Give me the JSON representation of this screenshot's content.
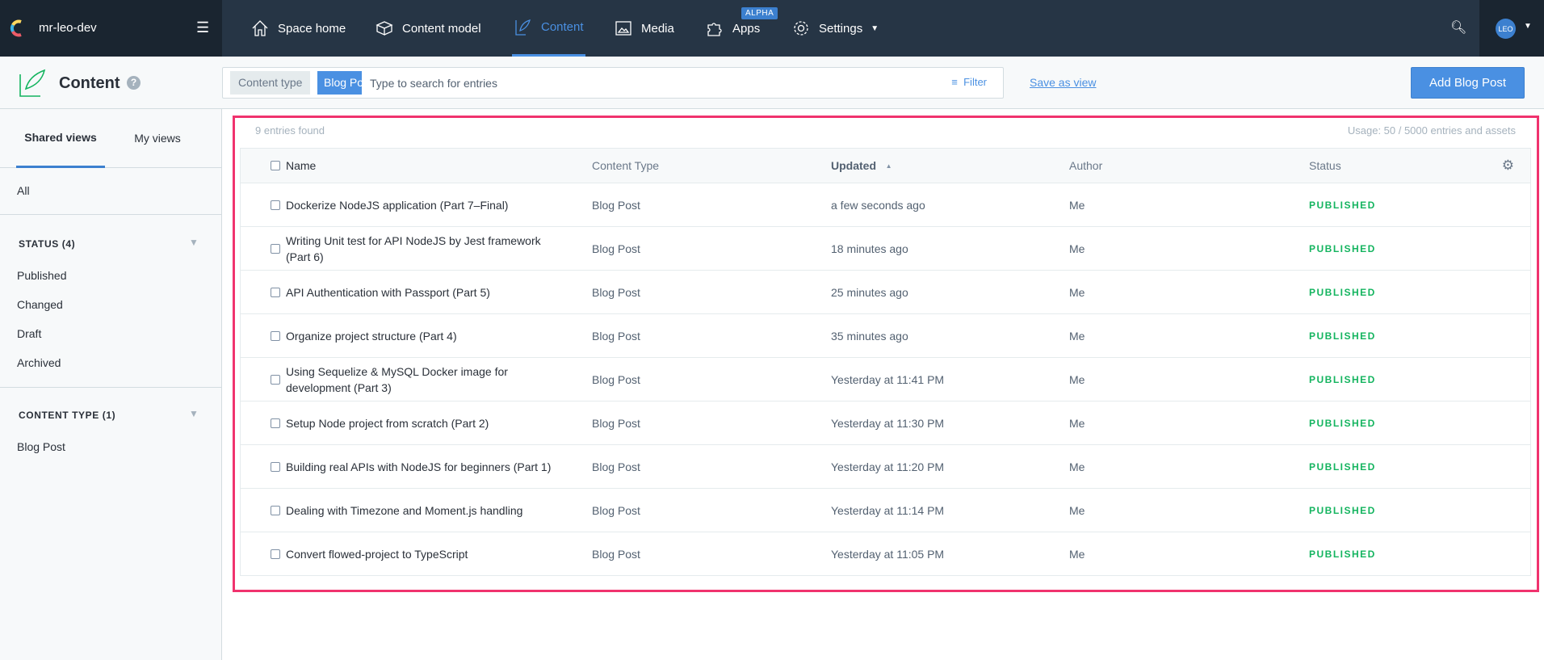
{
  "topnav": {
    "space_name": "mr-leo-dev",
    "items": [
      {
        "label": "Space home",
        "icon": "house-icon"
      },
      {
        "label": "Content model",
        "icon": "cube-icon"
      },
      {
        "label": "Content",
        "icon": "feather-icon",
        "active": true
      },
      {
        "label": "Media",
        "icon": "image-icon"
      },
      {
        "label": "Apps",
        "icon": "puzzle-icon",
        "badge": "ALPHA"
      },
      {
        "label": "Settings",
        "icon": "gear-icon"
      }
    ],
    "avatar": "LEO"
  },
  "subbar": {
    "title": "Content",
    "content_type_label": "Content type",
    "content_type_value": "Blog Post",
    "search_placeholder": "Type to search for entries",
    "filter": "Filter",
    "save_as_view": "Save as view",
    "add_button": "Add Blog Post"
  },
  "sidebar": {
    "tabs": [
      "Shared views",
      "My views"
    ],
    "all": "All",
    "status_header": "STATUS (4)",
    "statuses": [
      "Published",
      "Changed",
      "Draft",
      "Archived"
    ],
    "ct_header": "CONTENT TYPE (1)",
    "content_types": [
      "Blog Post"
    ]
  },
  "main": {
    "found": "9 entries found",
    "usage": "Usage: 50 / 5000 entries and assets",
    "columns": {
      "name": "Name",
      "type": "Content Type",
      "updated": "Updated",
      "author": "Author",
      "status": "Status",
      "sort": "▲"
    },
    "rows": [
      {
        "name": "Dockerize NodeJS application (Part 7–Final)",
        "type": "Blog Post",
        "updated": "a few seconds ago",
        "author": "Me",
        "status": "PUBLISHED"
      },
      {
        "name": "Writing Unit test for API NodeJS by Jest framework (Part 6)",
        "type": "Blog Post",
        "updated": "18 minutes ago",
        "author": "Me",
        "status": "PUBLISHED"
      },
      {
        "name": "API Authentication with Passport (Part 5)",
        "type": "Blog Post",
        "updated": "25 minutes ago",
        "author": "Me",
        "status": "PUBLISHED"
      },
      {
        "name": "Organize project structure (Part 4)",
        "type": "Blog Post",
        "updated": "35 minutes ago",
        "author": "Me",
        "status": "PUBLISHED"
      },
      {
        "name": "Using Sequelize & MySQL Docker image for development (Part 3)",
        "type": "Blog Post",
        "updated": "Yesterday at 11:41 PM",
        "author": "Me",
        "status": "PUBLISHED"
      },
      {
        "name": "Setup Node project from scratch (Part 2)",
        "type": "Blog Post",
        "updated": "Yesterday at 11:30 PM",
        "author": "Me",
        "status": "PUBLISHED"
      },
      {
        "name": "Building real APIs with NodeJS for beginners (Part 1)",
        "type": "Blog Post",
        "updated": "Yesterday at 11:20 PM",
        "author": "Me",
        "status": "PUBLISHED"
      },
      {
        "name": "Dealing with Timezone and Moment.js handling",
        "type": "Blog Post",
        "updated": "Yesterday at 11:14 PM",
        "author": "Me",
        "status": "PUBLISHED"
      },
      {
        "name": "Convert flowed-project to TypeScript",
        "type": "Blog Post",
        "updated": "Yesterday at 11:05 PM",
        "author": "Me",
        "status": "PUBLISHED"
      }
    ]
  }
}
